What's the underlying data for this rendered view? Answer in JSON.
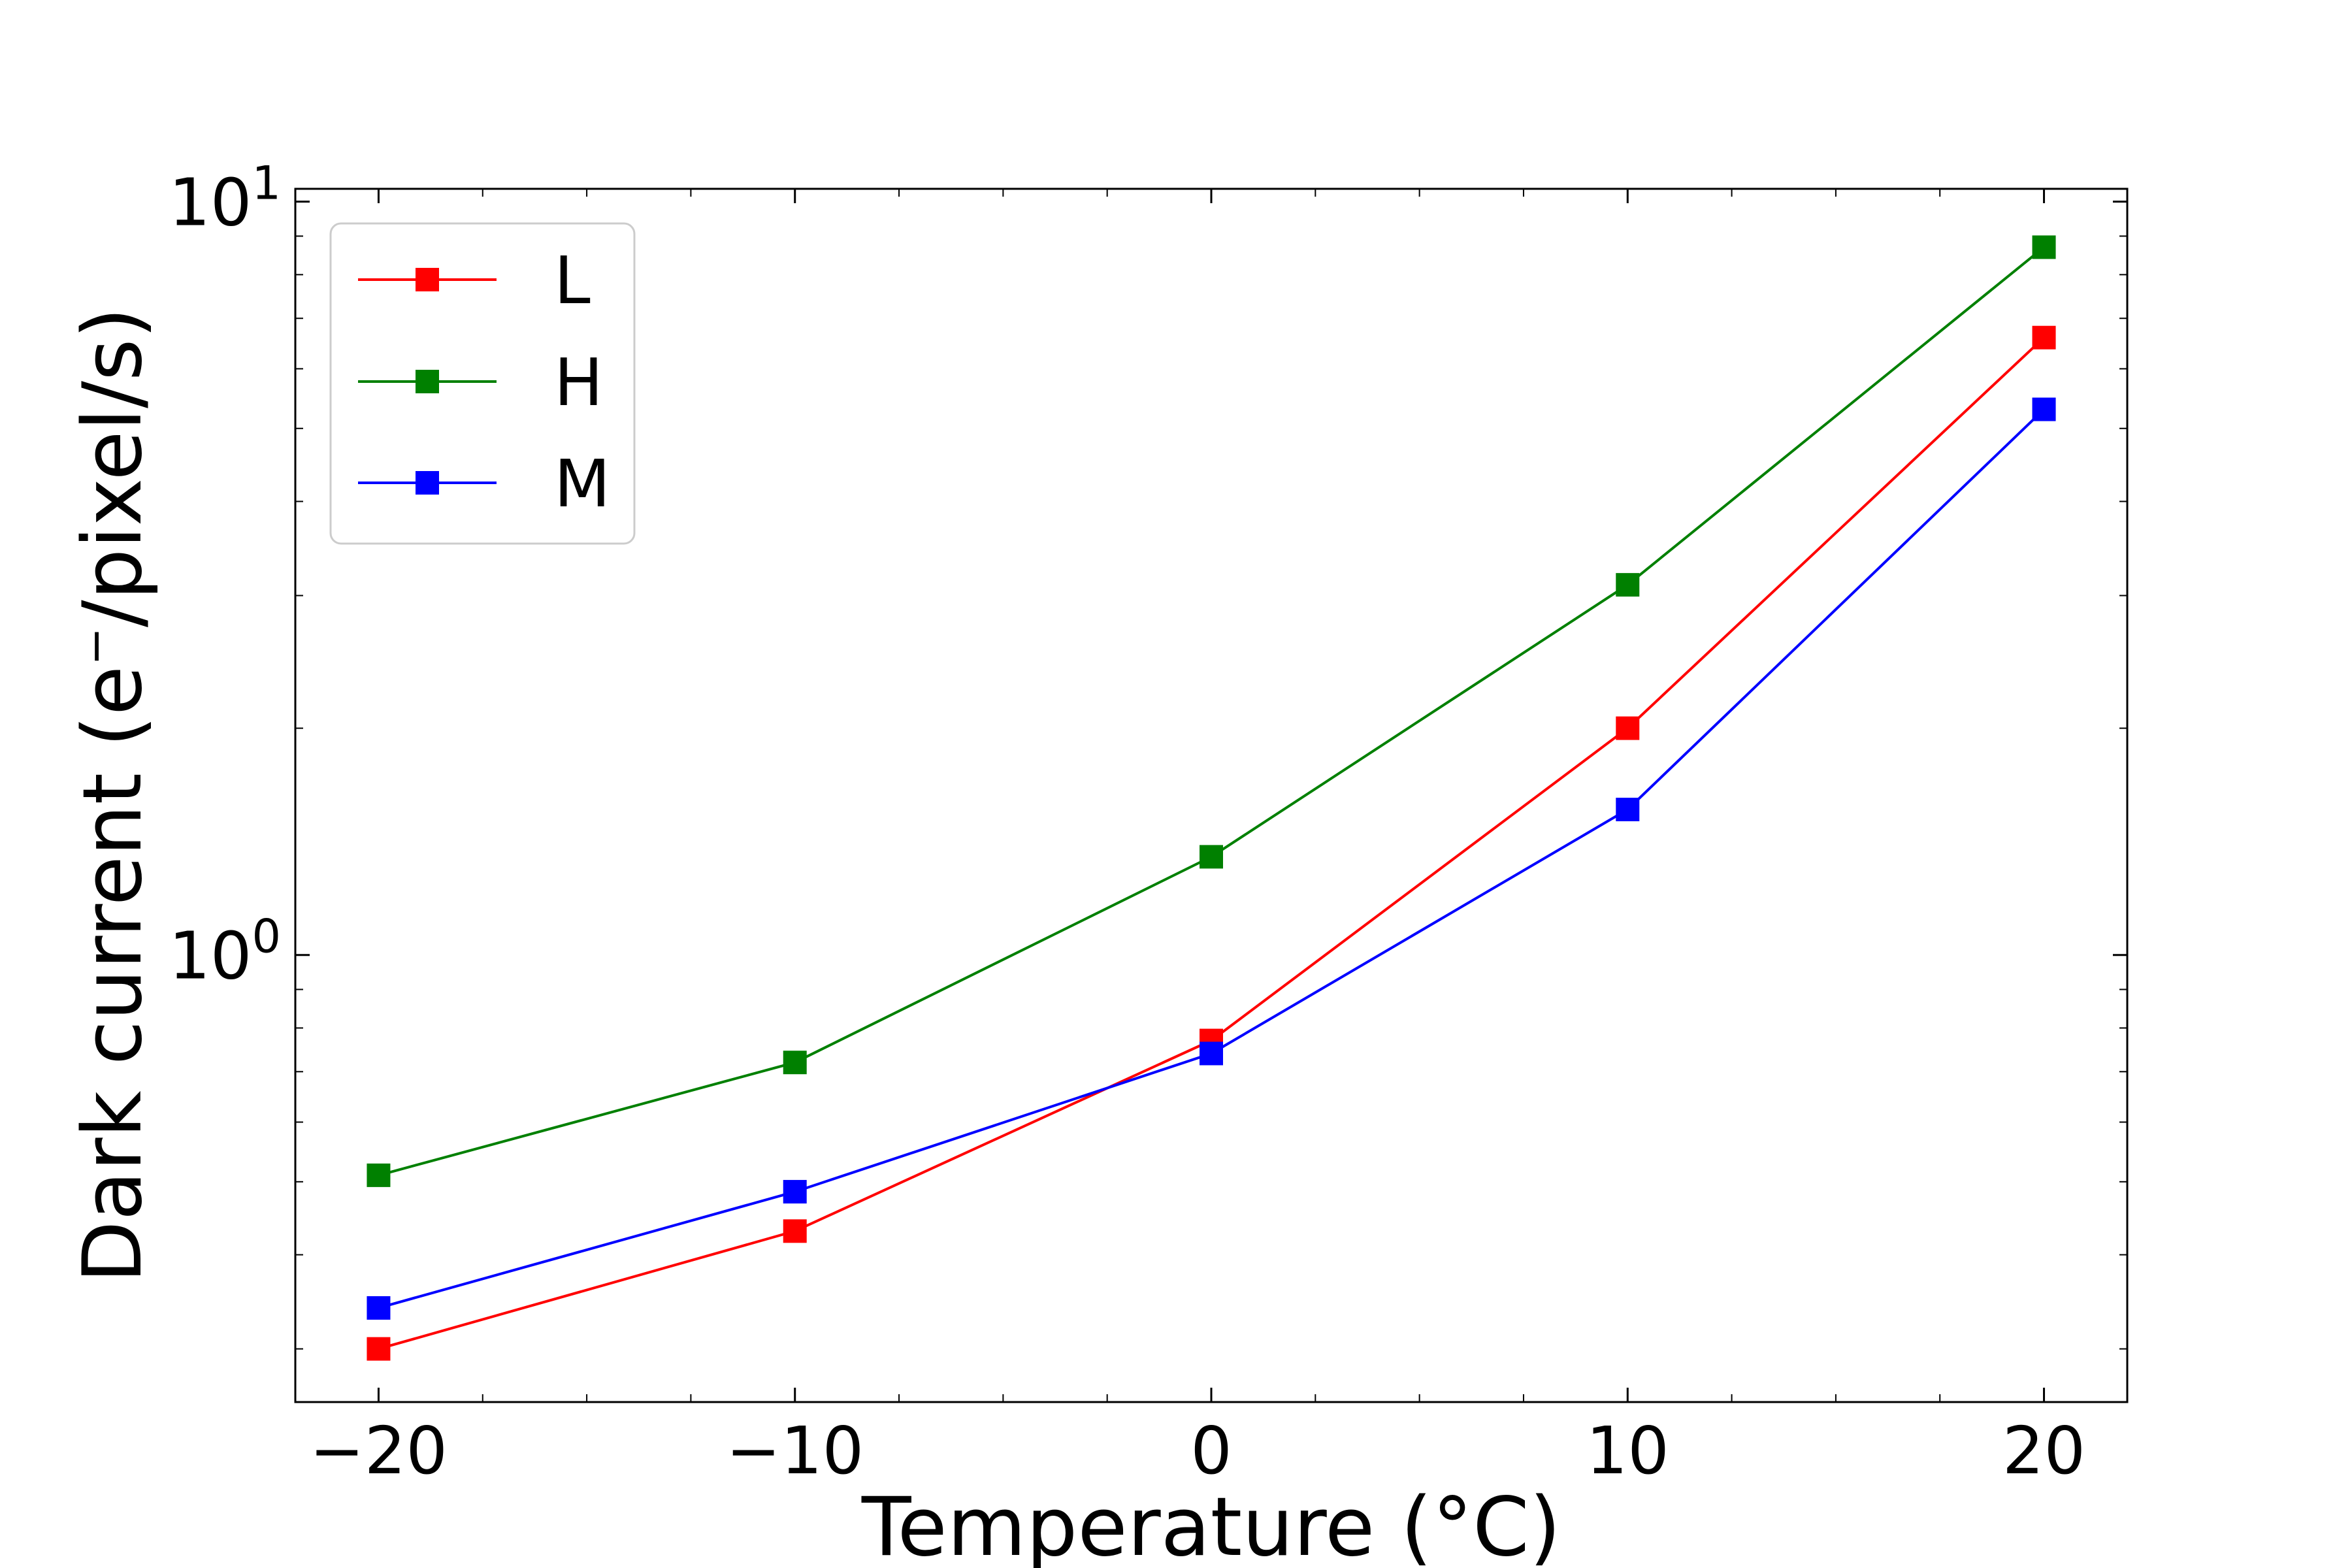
{
  "chart_data": {
    "type": "line",
    "title": "",
    "xlabel": "Temperature (°C)",
    "ylabel_main": "Dark current (e",
    "ylabel_sup": "−",
    "ylabel_tail": "/pixel/s)",
    "yscale": "log",
    "xlim": [
      -22,
      22
    ],
    "ylim": [
      0.255,
      10.4
    ],
    "x": [
      -20,
      -10,
      0,
      10,
      20
    ],
    "x_tick_values": [
      -20,
      -10,
      0,
      10,
      20
    ],
    "x_tick_labels": [
      "−20",
      "−10",
      "0",
      "10",
      "20"
    ],
    "y_major_ticks": [
      {
        "value": 1,
        "base": "10",
        "exp": "0"
      },
      {
        "value": 10,
        "base": "10",
        "exp": "1"
      }
    ],
    "series": [
      {
        "name": "L",
        "color": "#ff0000",
        "values": [
          0.3,
          0.43,
          0.77,
          2.0,
          6.6
        ]
      },
      {
        "name": "H",
        "color": "#008000",
        "values": [
          0.51,
          0.72,
          1.35,
          3.1,
          8.7
        ]
      },
      {
        "name": "M",
        "color": "#0000ff",
        "values": [
          0.34,
          0.485,
          0.74,
          1.56,
          5.3
        ]
      }
    ],
    "legend": {
      "position": "top-left",
      "entries": [
        "L",
        "H",
        "M"
      ]
    },
    "grid": false
  }
}
